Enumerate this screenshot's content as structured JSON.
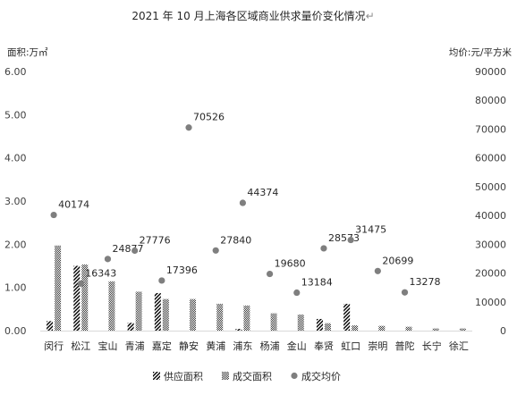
{
  "chart_data": {
    "type": "bar",
    "title": "2021 年 10 月上海各区域商业供求量价变化情况",
    "title_mark": "↵",
    "ylabel_left": "面积:万㎡",
    "ylabel_right": "均价:元/平方米",
    "ylim_left": [
      0,
      6
    ],
    "ylim_right": [
      0,
      90000
    ],
    "yticks_left": [
      "0.00",
      "1.00",
      "2.00",
      "3.00",
      "4.00",
      "5.00",
      "6.00"
    ],
    "yticks_right": [
      "0",
      "10000",
      "20000",
      "30000",
      "40000",
      "50000",
      "60000",
      "70000",
      "80000",
      "90000"
    ],
    "categories": [
      "闵行",
      "松江",
      "宝山",
      "青浦",
      "嘉定",
      "静安",
      "黄浦",
      "浦东",
      "杨浦",
      "金山",
      "奉贤",
      "虹口",
      "崇明",
      "普陀",
      "长宁",
      "徐汇"
    ],
    "series": [
      {
        "name": "供应面积",
        "kind": "bar",
        "pattern": "diagonal",
        "axis": "left",
        "values": [
          0.22,
          1.5,
          0,
          0.18,
          0.87,
          0,
          0,
          0.04,
          0,
          0,
          0.27,
          0.62,
          0,
          0,
          0,
          0
        ]
      },
      {
        "name": "成交面积",
        "kind": "bar",
        "pattern": "checker",
        "axis": "left",
        "values": [
          1.97,
          1.53,
          1.14,
          0.9,
          0.73,
          0.73,
          0.62,
          0.58,
          0.4,
          0.37,
          0.17,
          0.12,
          0.11,
          0.09,
          0.05,
          0.05
        ]
      },
      {
        "name": "成交均价",
        "kind": "scatter",
        "axis": "right",
        "color": "#7f7f7f",
        "values": [
          40174,
          16343,
          24877,
          27776,
          17396,
          70526,
          27840,
          44374,
          19680,
          13184,
          28573,
          31475,
          20699,
          13278,
          null,
          null
        ],
        "labels": [
          "40174",
          "16343",
          "24877",
          "27776",
          "17396",
          "70526",
          "27840",
          "44374",
          "19680",
          "13184",
          "28573",
          "31475",
          "20699",
          "13278",
          "",
          ""
        ]
      }
    ],
    "legend_position": "bottom",
    "grid": false
  }
}
